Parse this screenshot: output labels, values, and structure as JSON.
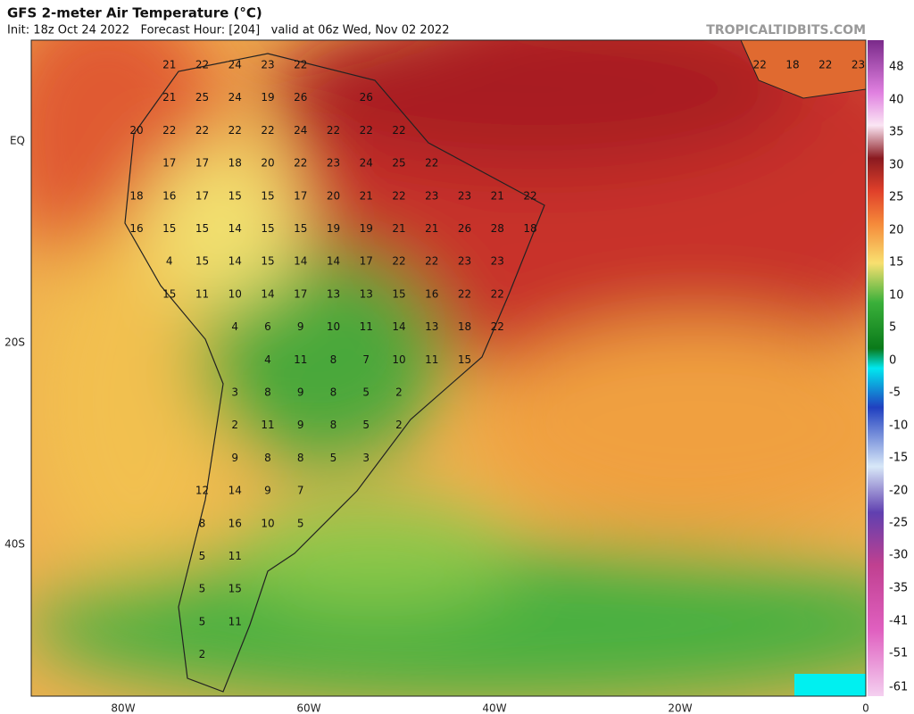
{
  "header": {
    "title": "GFS 2-meter Air Temperature (°C)",
    "subtitle": "Init: 18z Oct 24 2022   Forecast Hour: [204]   valid at 06z Wed, Nov 02 2022",
    "site": "TROPICALTIDBITS.COM"
  },
  "axes": {
    "x_labels": [
      "80W",
      "60W",
      "40W",
      "20W",
      "0"
    ],
    "y_labels": [
      "EQ",
      "20S",
      "40S"
    ]
  },
  "colorbar": {
    "ticks": [
      48,
      40,
      35,
      30,
      25,
      20,
      15,
      10,
      5,
      0,
      -5,
      -10,
      -15,
      -20,
      -25,
      -30,
      -35,
      -41,
      -51,
      -61
    ]
  },
  "map_labels": {
    "rows": [
      [
        21,
        22,
        24,
        23,
        22,
        22,
        18,
        22,
        23
      ],
      [
        21,
        25,
        24,
        19,
        26,
        26
      ],
      [
        20,
        22,
        22,
        22,
        22,
        24,
        22,
        22,
        22
      ],
      [
        17,
        17,
        18,
        20,
        22,
        23,
        24,
        25,
        22
      ],
      [
        18,
        16,
        17,
        15,
        15,
        17,
        20,
        21,
        22,
        23,
        23,
        21,
        22
      ],
      [
        16,
        15,
        15,
        14,
        15,
        15,
        19,
        19,
        21,
        21,
        26,
        28,
        18
      ],
      [
        4,
        15,
        14,
        15,
        14,
        14,
        17,
        22,
        22,
        23,
        23
      ],
      [
        15,
        11,
        10,
        14,
        17,
        13,
        13,
        15,
        16,
        22,
        22
      ],
      [
        4,
        6,
        9,
        10,
        11,
        14,
        13,
        18,
        22
      ],
      [
        4,
        11,
        8,
        7,
        10,
        11,
        15
      ],
      [
        3,
        8,
        9,
        8,
        5,
        2
      ],
      [
        2,
        11,
        9,
        8,
        5,
        2
      ],
      [
        9,
        8,
        8,
        5,
        3
      ],
      [
        12,
        14,
        9,
        7
      ],
      [
        8,
        16,
        10,
        5
      ],
      [
        5,
        11
      ],
      [
        5,
        15
      ],
      [
        5,
        11
      ],
      [
        2
      ]
    ]
  }
}
